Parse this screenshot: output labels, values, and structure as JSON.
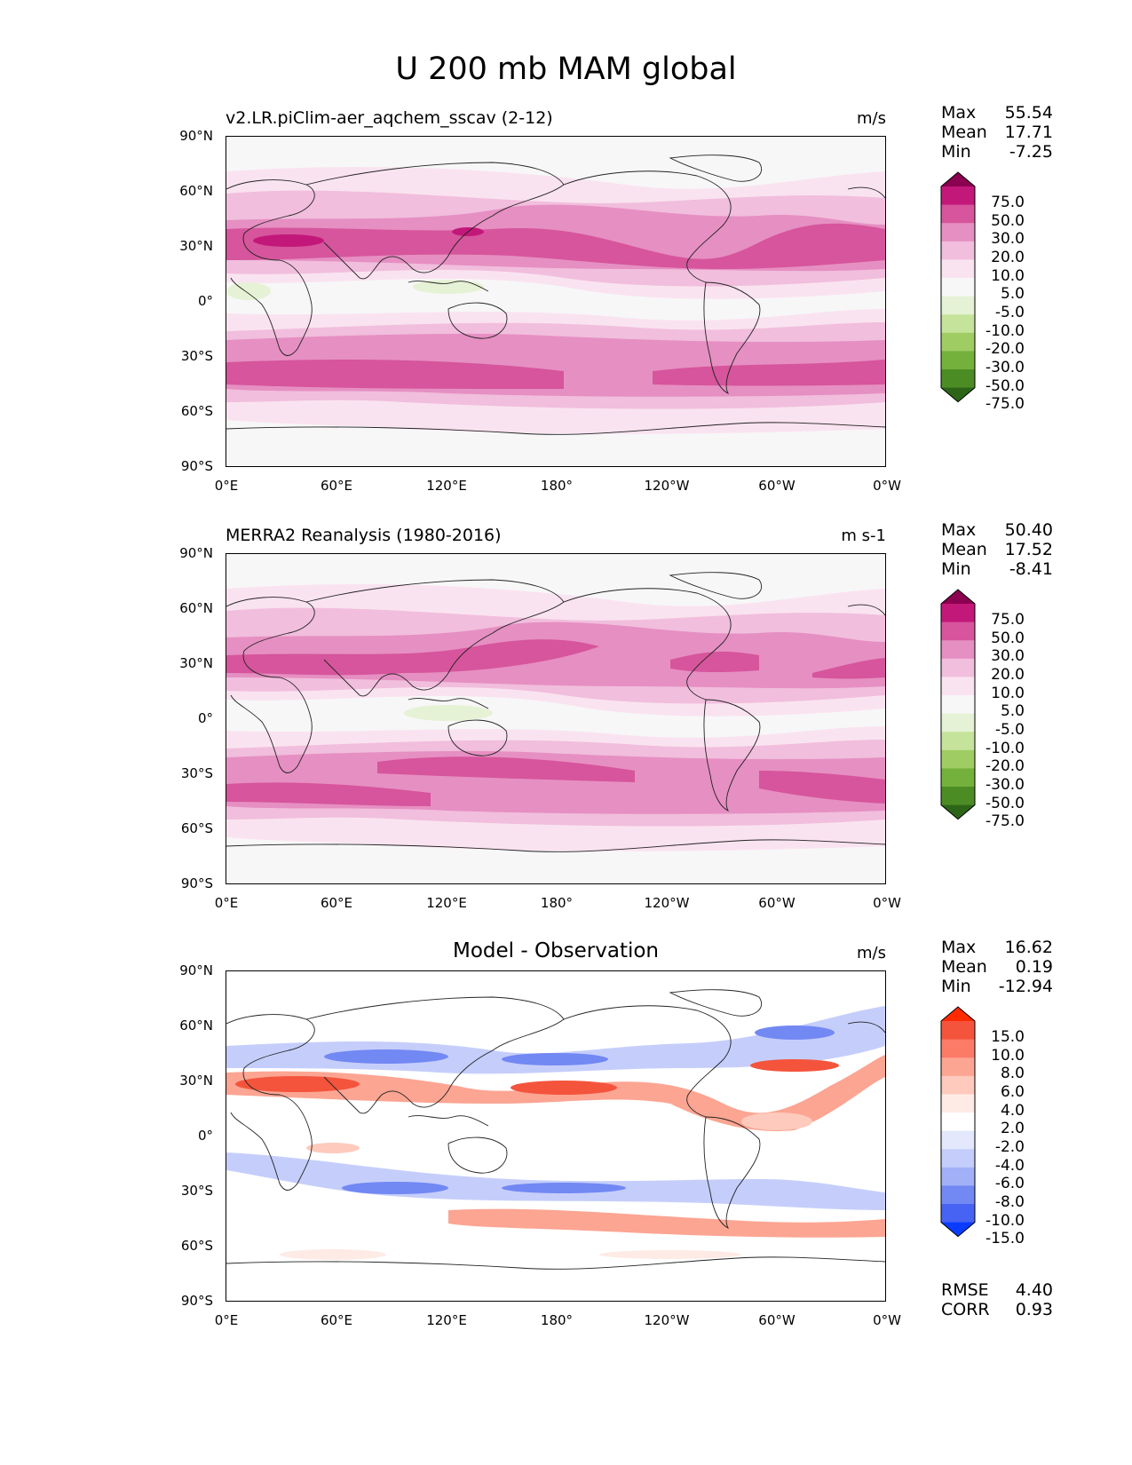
{
  "figure": {
    "title": "U 200 mb MAM global"
  },
  "axes": {
    "lat_labels": [
      "90°N",
      "60°N",
      "30°N",
      "0°",
      "30°S",
      "60°S",
      "90°S"
    ],
    "lon_labels": [
      "0°E",
      "60°E",
      "120°E",
      "180°",
      "120°W",
      "60°W",
      "0°W"
    ]
  },
  "panels": [
    {
      "title": "v2.LR.piClim-aer_aqchem_sscav (2-12)",
      "units": "m/s",
      "stats": [
        {
          "label": "Max",
          "value": "55.54"
        },
        {
          "label": "Mean",
          "value": "17.71"
        },
        {
          "label": "Min",
          "value": "-7.25"
        }
      ],
      "colorbar": {
        "levels": [
          "75.0",
          "50.0",
          "30.0",
          "20.0",
          "10.0",
          "5.0",
          "-5.0",
          "-10.0",
          "-20.0",
          "-30.0",
          "-50.0",
          "-75.0"
        ],
        "colors": [
          "#8b0050",
          "#c2187a",
          "#d6559c",
          "#e68fc2",
          "#f1bedd",
          "#fae3f0",
          "#f7f7f7",
          "#e6f2d5",
          "#c6e39c",
          "#9fcd64",
          "#74b03c",
          "#4c8c24",
          "#2d6518"
        ]
      }
    },
    {
      "title": "MERRA2 Reanalysis (1980-2016)",
      "units": "m s-1",
      "stats": [
        {
          "label": "Max",
          "value": "50.40"
        },
        {
          "label": "Mean",
          "value": "17.52"
        },
        {
          "label": "Min",
          "value": "-8.41"
        }
      ],
      "colorbar": {
        "levels": [
          "75.0",
          "50.0",
          "30.0",
          "20.0",
          "10.0",
          "5.0",
          "-5.0",
          "-10.0",
          "-20.0",
          "-30.0",
          "-50.0",
          "-75.0"
        ],
        "colors": [
          "#8b0050",
          "#c2187a",
          "#d6559c",
          "#e68fc2",
          "#f1bedd",
          "#fae3f0",
          "#f7f7f7",
          "#e6f2d5",
          "#c6e39c",
          "#9fcd64",
          "#74b03c",
          "#4c8c24",
          "#2d6518"
        ]
      }
    },
    {
      "title": "Model - Observation",
      "units": "m/s",
      "stats": [
        {
          "label": "Max",
          "value": "16.62"
        },
        {
          "label": "Mean",
          "value": "0.19"
        },
        {
          "label": "Min",
          "value": "-12.94"
        }
      ],
      "extra_stats": [
        {
          "label": "RMSE",
          "value": "4.40"
        },
        {
          "label": "CORR",
          "value": "0.93"
        }
      ],
      "colorbar": {
        "levels": [
          "15.0",
          "10.0",
          "8.0",
          "6.0",
          "4.0",
          "2.0",
          "-2.0",
          "-4.0",
          "-6.0",
          "-8.0",
          "-10.0",
          "-15.0"
        ],
        "colors": [
          "#ff2a00",
          "#f4543c",
          "#fb7b66",
          "#fca592",
          "#fdcabd",
          "#feebe6",
          "#ffffff",
          "#e3e8fd",
          "#c5cefb",
          "#a2b0f8",
          "#7288f3",
          "#4763f3",
          "#0a3cff"
        ]
      }
    }
  ]
}
